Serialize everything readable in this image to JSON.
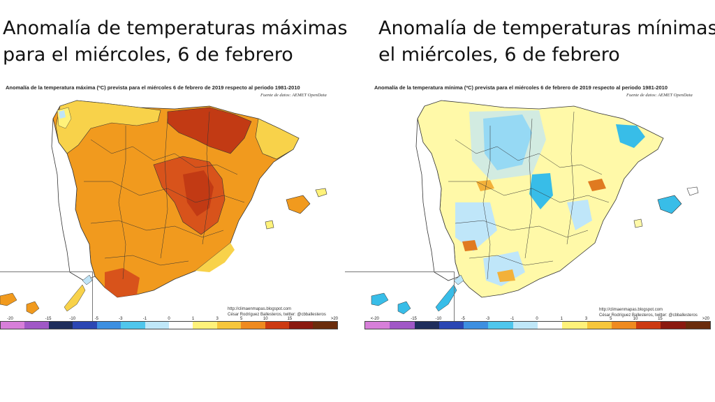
{
  "panels": [
    {
      "headline_line1": "Anomalía de temperaturas máximas",
      "headline_line2": "para el miércoles, 6 de febrero",
      "map_title": "Anomalía de la temperatura máxima (ºC) prevista para el miércoles 6 de febrero de 2019 respecto al periodo 1981-2010",
      "source": "Fuente de datos: AEMET OpenData",
      "credit_url": "http://climaenmapas.blogspot.com",
      "credit_author": "César Rodríguez Ballesteros, twitter: @cbballesteros",
      "colorbar_ticks": [
        "-20",
        "-15",
        "-10",
        "-5",
        "-3",
        "-1",
        "0",
        "1",
        "3",
        "5",
        "10",
        "15",
        ">20"
      ],
      "palette": {
        "land_main": "#f19a1e",
        "land_hot": "#d8531b",
        "land_hotter": "#c23a14",
        "land_mild": "#f8d24a",
        "land_cool": "#fff27a",
        "land_cold": "#bfe4f7",
        "border": "#333333"
      }
    },
    {
      "headline_line1": "Anomalía de temperaturas mínimas",
      "headline_line2": "el miércoles, 6 de febrero",
      "map_title": "Anomalía de la temperatura mínima (ºC) prevista para el miércoles 6 de febrero de 2019 respecto al periodo 1981-2010",
      "source": "Fuente de datos: AEMET OpenData",
      "credit_url": "http://climaenmapas.blogspot.com",
      "credit_author": "César Rodríguez Ballesteros, twitter: @cbballesteros",
      "colorbar_ticks": [
        "<-20",
        "-15",
        "-10",
        "-5",
        "-3",
        "-1",
        "0",
        "1",
        "3",
        "5",
        "10",
        "15",
        ">20"
      ],
      "palette": {
        "land_main": "#fff9a8",
        "land_hot": "#f3b13a",
        "land_hotter": "#e07a20",
        "land_mild": "#ffffff",
        "land_cool": "#bfe6f9",
        "land_cold": "#38bde8",
        "border": "#333333"
      }
    }
  ],
  "colorbar_colors": [
    "#d77fd9",
    "#a058c6",
    "#1f2e5c",
    "#2b46b3",
    "#3d8fe0",
    "#4fc6ec",
    "#bfe7f8",
    "#ffffff",
    "#fff27a",
    "#f6c63c",
    "#ef8a1f",
    "#cc3a12",
    "#8a1a10",
    "#6a2c0c"
  ]
}
